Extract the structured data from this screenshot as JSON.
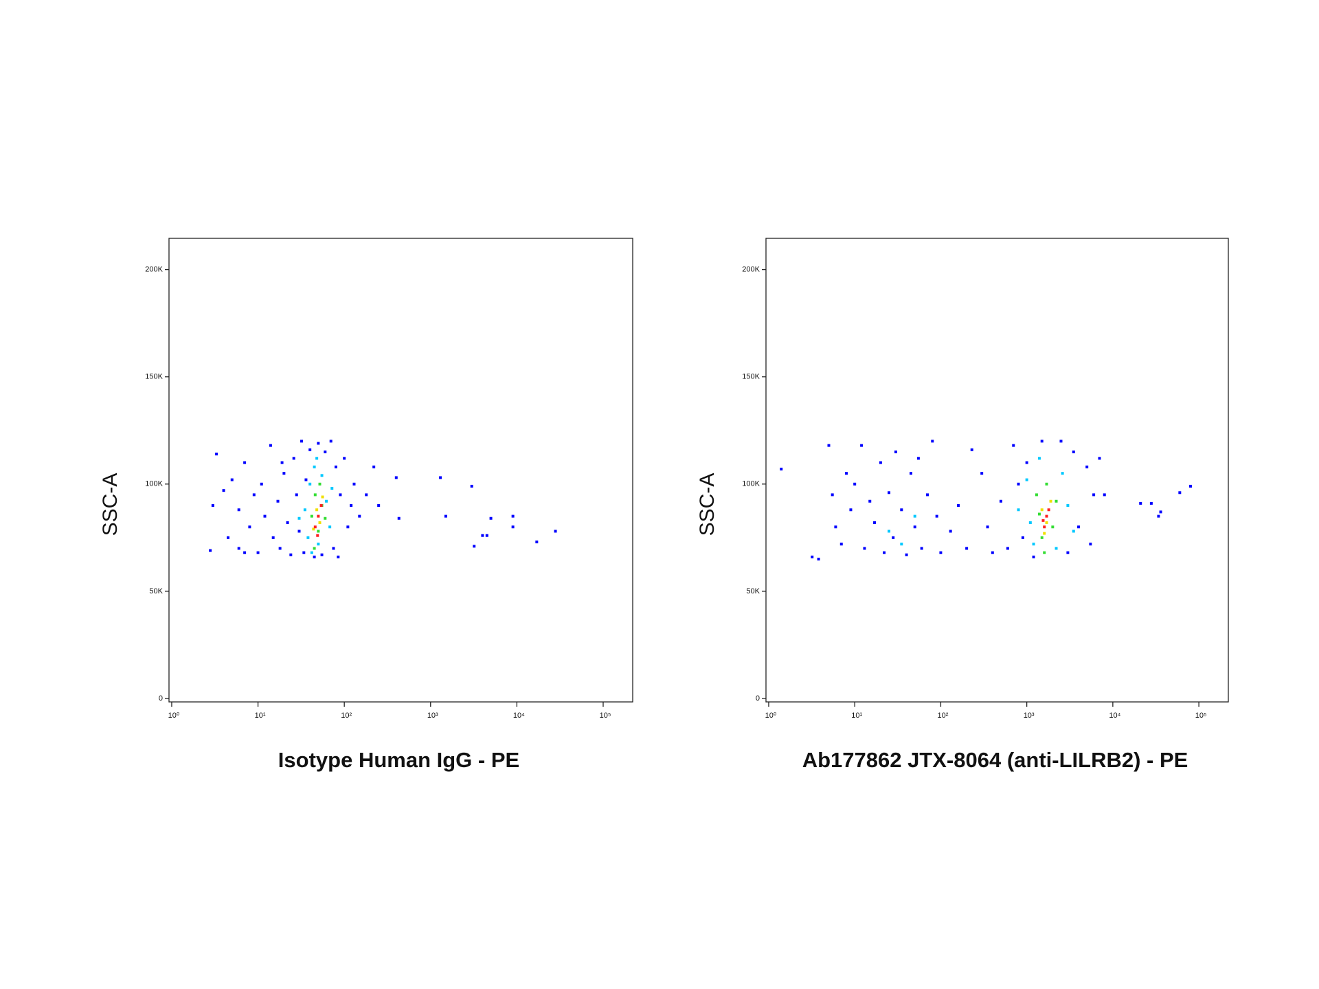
{
  "chart_data": [
    {
      "type": "scatter",
      "x_label": "Isotype Human IgG - PE",
      "y_label": "SSC-A",
      "xscale": "log",
      "xlim": [
        0.93,
        220000
      ],
      "ylim": [
        -1600,
        214600
      ],
      "xticks": [
        {
          "value": 1,
          "label": "10⁰"
        },
        {
          "value": 10,
          "label": "10¹"
        },
        {
          "value": 100,
          "label": "10²"
        },
        {
          "value": 1000,
          "label": "10³"
        },
        {
          "value": 10000,
          "label": "10⁴"
        },
        {
          "value": 100000,
          "label": "10⁵"
        }
      ],
      "yticks": [
        0,
        {
          "value": 50000,
          "label": "50K"
        },
        {
          "value": 100000,
          "label": "100K"
        },
        {
          "value": 150000,
          "label": "150K"
        },
        {
          "value": 200000,
          "label": "200K"
        }
      ],
      "series": [
        {
          "color": "#0000ff",
          "x": [
            3,
            3.3,
            4,
            4.5,
            5,
            6,
            6,
            7,
            8,
            9,
            10,
            11,
            12,
            14,
            15,
            17,
            18,
            20,
            22,
            24,
            26,
            28,
            30,
            32,
            34,
            36,
            40,
            45,
            50,
            55,
            60,
            70,
            75,
            80,
            85,
            90,
            100,
            110,
            120,
            130,
            150,
            180,
            220,
            250,
            400,
            430,
            1300,
            1500,
            3000,
            3200,
            4000,
            4500,
            5000,
            9000,
            9000,
            17000,
            28000,
            2.8,
            7,
            19
          ],
          "values": [
            90000,
            114000,
            97000,
            75000,
            102000,
            70000,
            88000,
            110000,
            80000,
            95000,
            68000,
            100000,
            85000,
            118000,
            75000,
            92000,
            70000,
            105000,
            82000,
            67000,
            112000,
            95000,
            78000,
            120000,
            68000,
            102000,
            116000,
            66000,
            119000,
            67000,
            115000,
            120000,
            70000,
            108000,
            66000,
            95000,
            112000,
            80000,
            90000,
            100000,
            85000,
            95000,
            108000,
            90000,
            103000,
            84000,
            103000,
            85000,
            99000,
            71000,
            76000,
            76000,
            84000,
            85000,
            80000,
            73000,
            78000,
            69000,
            68000,
            110000
          ]
        },
        {
          "color": "#00c8ff",
          "x": [
            35,
            38,
            40,
            42,
            45,
            50,
            55,
            62,
            68,
            72,
            30,
            48
          ],
          "values": [
            88000,
            75000,
            100000,
            68000,
            108000,
            72000,
            104000,
            92000,
            80000,
            98000,
            84000,
            112000
          ]
        },
        {
          "color": "#33dd33",
          "x": [
            42,
            46,
            50,
            55,
            60,
            45,
            52
          ],
          "values": [
            85000,
            95000,
            78000,
            90000,
            84000,
            70000,
            100000
          ]
        },
        {
          "color": "#f0e000",
          "x": [
            48,
            52,
            56,
            44
          ],
          "values": [
            88000,
            82000,
            94000,
            79000
          ]
        },
        {
          "color": "#ff2020",
          "x": [
            50,
            46,
            54,
            49
          ],
          "values": [
            85000,
            80000,
            90000,
            76000
          ]
        }
      ]
    },
    {
      "type": "scatter",
      "x_label": "Ab177862 JTX-8064 (anti-LILRB2) - PE",
      "y_label": "SSC-A",
      "xscale": "log",
      "xlim": [
        0.93,
        220000
      ],
      "ylim": [
        -1600,
        214600
      ],
      "xticks": [
        {
          "value": 1,
          "label": "10⁰"
        },
        {
          "value": 10,
          "label": "10¹"
        },
        {
          "value": 100,
          "label": "10²"
        },
        {
          "value": 1000,
          "label": "10³"
        },
        {
          "value": 10000,
          "label": "10⁴"
        },
        {
          "value": 100000,
          "label": "10⁵"
        }
      ],
      "yticks": [
        0,
        {
          "value": 50000,
          "label": "50K"
        },
        {
          "value": 100000,
          "label": "100K"
        },
        {
          "value": 150000,
          "label": "150K"
        },
        {
          "value": 200000,
          "label": "200K"
        }
      ],
      "series": [
        {
          "color": "#0000ff",
          "x": [
            1.4,
            3.2,
            3.8,
            5,
            5.5,
            6,
            7,
            8,
            9,
            10,
            12,
            13,
            15,
            17,
            20,
            22,
            25,
            28,
            30,
            35,
            40,
            45,
            50,
            55,
            60,
            70,
            80,
            90,
            100,
            130,
            160,
            200,
            230,
            300,
            350,
            400,
            500,
            600,
            700,
            800,
            900,
            1000,
            1200,
            1500,
            2500,
            3000,
            3500,
            4000,
            5000,
            5500,
            6000,
            7000,
            8000,
            21000,
            28000,
            34000,
            36000,
            60000,
            80000
          ],
          "values": [
            107000,
            66000,
            65000,
            118000,
            95000,
            80000,
            72000,
            105000,
            88000,
            100000,
            118000,
            70000,
            92000,
            82000,
            110000,
            68000,
            96000,
            75000,
            115000,
            88000,
            67000,
            105000,
            80000,
            112000,
            70000,
            95000,
            120000,
            85000,
            68000,
            78000,
            90000,
            70000,
            116000,
            105000,
            80000,
            68000,
            92000,
            70000,
            118000,
            100000,
            75000,
            110000,
            66000,
            120000,
            120000,
            68000,
            115000,
            80000,
            108000,
            72000,
            95000,
            112000,
            95000,
            91000,
            91000,
            85000,
            87000,
            96000,
            99000
          ]
        },
        {
          "color": "#00c8ff",
          "x": [
            25,
            35,
            50,
            800,
            1000,
            1200,
            1400,
            2200,
            2600,
            3000,
            3500,
            1100
          ],
          "values": [
            78000,
            72000,
            85000,
            88000,
            102000,
            72000,
            112000,
            70000,
            105000,
            90000,
            78000,
            82000
          ]
        },
        {
          "color": "#33dd33",
          "x": [
            1300,
            1500,
            1700,
            2000,
            2200,
            1600,
            1400
          ],
          "values": [
            95000,
            75000,
            100000,
            80000,
            92000,
            68000,
            86000
          ]
        },
        {
          "color": "#f0e000",
          "x": [
            1500,
            1700,
            1900,
            1600
          ],
          "values": [
            88000,
            82000,
            92000,
            77000
          ]
        },
        {
          "color": "#ff2020",
          "x": [
            1700,
            1600,
            1800,
            1550
          ],
          "values": [
            85000,
            80000,
            88000,
            83000
          ]
        }
      ]
    }
  ]
}
